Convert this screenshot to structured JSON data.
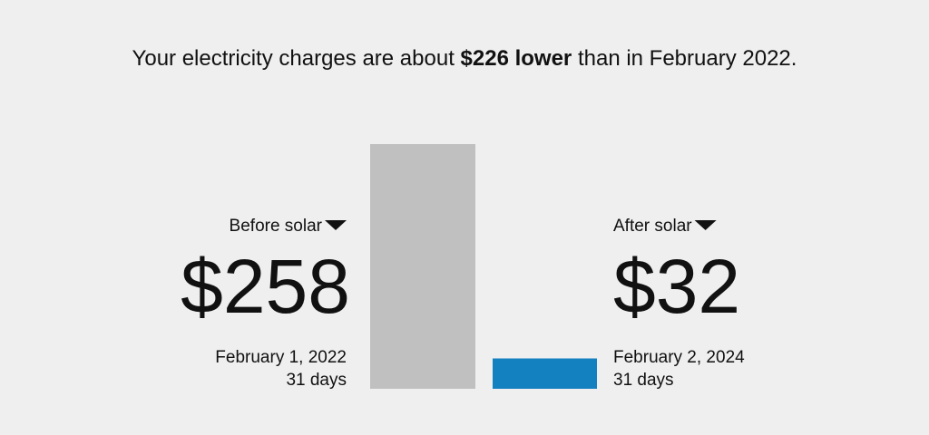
{
  "chart_data": {
    "type": "bar",
    "title": {
      "before": "Your electricity charges are about ",
      "highlight": "$226 lower",
      "after": " than in February 2022."
    },
    "categories": [
      "Before solar",
      "After solar"
    ],
    "values": [
      258,
      32
    ],
    "value_labels": [
      "$258",
      "$32"
    ],
    "dates": [
      "February 1, 2022",
      "February 2, 2024"
    ],
    "durations": [
      "31 days",
      "31 days"
    ],
    "colors": [
      "#c0c0c0",
      "#1380c0"
    ]
  }
}
